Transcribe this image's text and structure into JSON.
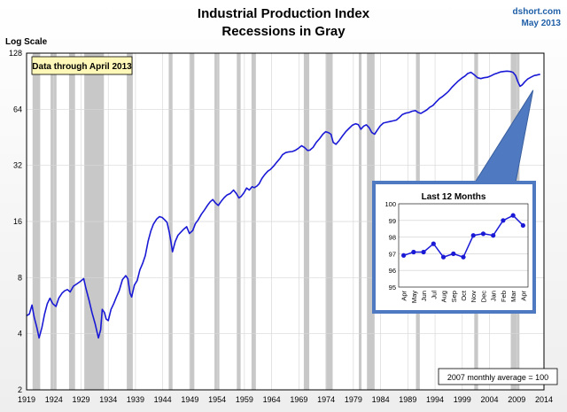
{
  "chart_data": [
    {
      "type": "line",
      "title": "Industrial Production Index",
      "subtitle": "Recessions in Gray",
      "credit": "dshort.com",
      "date": "May 2013",
      "ylabel": "Log Scale",
      "yscale": "log2",
      "ylim": [
        2,
        128
      ],
      "yticks": [
        2,
        4,
        8,
        16,
        32,
        64,
        128
      ],
      "xlim": [
        1919,
        2014
      ],
      "xticks": [
        1919,
        1924,
        1929,
        1934,
        1939,
        1944,
        1949,
        1954,
        1959,
        1964,
        1969,
        1974,
        1979,
        1984,
        1989,
        1994,
        1999,
        2004,
        2009,
        2014
      ],
      "grid": true,
      "annotation_box": "Data through April 2013",
      "footnote": "2007 monthly average = 100",
      "line_color": "#1a1ad6",
      "recession_color": "#c8c8c8",
      "recessions": [
        [
          1920.1,
          1921.5
        ],
        [
          1923.4,
          1924.5
        ],
        [
          1926.8,
          1927.9
        ],
        [
          1929.6,
          1933.2
        ],
        [
          1937.4,
          1938.5
        ],
        [
          1945.1,
          1945.8
        ],
        [
          1948.9,
          1949.8
        ],
        [
          1953.5,
          1954.4
        ],
        [
          1957.6,
          1958.3
        ],
        [
          1960.3,
          1961.1
        ],
        [
          1969.9,
          1970.9
        ],
        [
          1973.9,
          1975.2
        ],
        [
          1980.0,
          1980.5
        ],
        [
          1981.5,
          1982.9
        ],
        [
          1990.5,
          1991.2
        ],
        [
          2001.2,
          2001.9
        ],
        [
          2007.9,
          2009.5
        ]
      ],
      "series": [
        {
          "x": [
            1919.0,
            1919.5,
            1920.0,
            1920.4,
            1920.9,
            1921.3,
            1921.8,
            1922.3,
            1922.8,
            1923.3,
            1923.8,
            1924.4,
            1924.9,
            1925.5,
            1926.0,
            1926.5,
            1927.0,
            1927.6,
            1928.2,
            1928.8,
            1929.5,
            1929.9,
            1930.5,
            1931.0,
            1931.6,
            1932.2,
            1932.6,
            1932.9,
            1933.3,
            1933.6,
            1934.0,
            1934.5,
            1935.0,
            1935.5,
            1936.0,
            1936.6,
            1937.2,
            1937.6,
            1938.0,
            1938.3,
            1938.8,
            1939.3,
            1939.8,
            1940.3,
            1940.8,
            1941.3,
            1941.8,
            1942.3,
            1942.9,
            1943.4,
            1943.9,
            1944.4,
            1944.8,
            1945.2,
            1945.5,
            1945.8,
            1946.3,
            1946.8,
            1947.3,
            1947.8,
            1948.4,
            1948.9,
            1949.5,
            1950.0,
            1950.5,
            1951.1,
            1951.7,
            1952.2,
            1952.7,
            1953.2,
            1953.7,
            1954.2,
            1954.7,
            1955.3,
            1955.8,
            1956.4,
            1957.0,
            1957.5,
            1958.0,
            1958.4,
            1958.9,
            1959.4,
            1959.9,
            1960.4,
            1960.8,
            1961.3,
            1961.7,
            1962.2,
            1962.7,
            1963.3,
            1963.8,
            1964.4,
            1964.9,
            1965.5,
            1966.0,
            1966.6,
            1967.2,
            1967.8,
            1968.3,
            1968.9,
            1969.5,
            1970.0,
            1970.6,
            1971.0,
            1971.6,
            1972.2,
            1972.8,
            1973.4,
            1973.9,
            1974.4,
            1974.9,
            1975.3,
            1975.8,
            1976.4,
            1977.0,
            1977.6,
            1978.2,
            1978.8,
            1979.4,
            1979.9,
            1980.4,
            1980.9,
            1981.4,
            1981.9,
            1982.4,
            1982.9,
            1983.4,
            1983.9,
            1984.5,
            1985.1,
            1985.7,
            1986.3,
            1986.9,
            1987.5,
            1988.0,
            1988.6,
            1989.2,
            1989.8,
            1990.4,
            1990.9,
            1991.4,
            1991.9,
            1992.5,
            1993.0,
            1993.6,
            1994.2,
            1994.8,
            1995.4,
            1996.0,
            1996.5,
            1997.1,
            1997.7,
            1998.3,
            1998.9,
            1999.5,
            2000.0,
            2000.6,
            2001.2,
            2001.8,
            2002.4,
            2003.0,
            2003.6,
            2004.2,
            2004.8,
            2005.4,
            2006.0,
            2006.6,
            2007.2,
            2007.8,
            2008.3,
            2008.8,
            2009.2,
            2009.6,
            2010.0,
            2010.5,
            2011.0,
            2011.6,
            2012.2,
            2012.7,
            2013.3
          ],
          "values": [
            5.0,
            5.1,
            5.7,
            4.9,
            4.3,
            3.8,
            4.3,
            5.1,
            5.8,
            6.2,
            5.8,
            5.6,
            6.2,
            6.6,
            6.8,
            6.9,
            6.7,
            7.2,
            7.4,
            7.6,
            7.9,
            7.0,
            6.0,
            5.2,
            4.5,
            3.8,
            4.2,
            5.4,
            5.2,
            4.8,
            4.7,
            5.4,
            5.8,
            6.3,
            6.8,
            7.8,
            8.2,
            7.9,
            6.6,
            6.3,
            7.3,
            7.7,
            8.8,
            9.5,
            10.5,
            12.5,
            14.2,
            15.5,
            16.5,
            17.0,
            16.8,
            16.3,
            15.8,
            14.0,
            12.5,
            11.0,
            12.5,
            13.5,
            14.0,
            14.5,
            15.0,
            13.8,
            14.3,
            15.6,
            16.3,
            17.5,
            18.5,
            19.5,
            20.4,
            21.0,
            20.1,
            19.5,
            20.5,
            21.5,
            22.2,
            22.6,
            23.6,
            22.6,
            21.4,
            21.8,
            22.8,
            24.2,
            23.6,
            24.6,
            24.3,
            24.8,
            25.5,
            27.2,
            28.5,
            29.8,
            30.5,
            31.8,
            33.2,
            34.8,
            36.5,
            37.5,
            37.8,
            38.0,
            38.5,
            39.5,
            40.8,
            40.0,
            38.5,
            38.6,
            40.0,
            42.5,
            44.5,
            47.0,
            48.5,
            48.0,
            47.0,
            42.5,
            41.5,
            43.5,
            46.0,
            48.5,
            50.5,
            52.5,
            53.5,
            53.0,
            50.0,
            52.0,
            52.8,
            51.0,
            48.0,
            47.0,
            49.5,
            52.0,
            54.0,
            54.5,
            55.0,
            55.5,
            56.0,
            58.0,
            60.0,
            61.0,
            61.5,
            62.5,
            63.0,
            61.5,
            60.8,
            62.0,
            63.5,
            65.5,
            67.0,
            70.0,
            73.0,
            75.0,
            77.5,
            80.0,
            84.0,
            87.5,
            91.0,
            94.0,
            96.5,
            99.5,
            101.0,
            98.0,
            94.5,
            93.5,
            94.5,
            95.0,
            96.5,
            98.5,
            100.0,
            101.5,
            102.0,
            102.5,
            102.0,
            101.0,
            97.0,
            90.0,
            85.0,
            86.5,
            90.0,
            93.0,
            95.0,
            97.0,
            97.7,
            98.7
          ]
        }
      ]
    },
    {
      "type": "line",
      "title": "Last 12 Months",
      "categories": [
        "Apr",
        "May",
        "Jun",
        "Jul",
        "Aug",
        "Sep",
        "Oct",
        "Nov",
        "Dec",
        "Jan",
        "Feb",
        "Mar",
        "Apr"
      ],
      "ylim": [
        95,
        100
      ],
      "yticks": [
        95,
        96,
        97,
        98,
        99,
        100
      ],
      "grid": true,
      "series": [
        {
          "values": [
            96.9,
            97.1,
            97.1,
            97.6,
            96.8,
            97.0,
            96.8,
            98.1,
            98.2,
            98.1,
            99.0,
            99.3,
            98.7
          ]
        }
      ]
    }
  ]
}
